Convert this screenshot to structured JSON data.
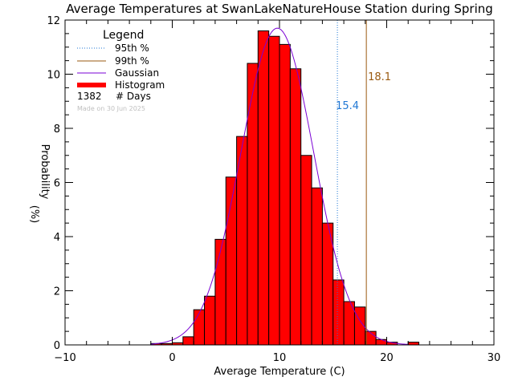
{
  "chart_data": {
    "type": "bar",
    "title": "Average Temperatures at SwanLakeNatureHouse Station during Spring",
    "xlabel": "Average Temperature (C)",
    "ylabel": "Probability",
    "ylabel_unit": "(%)",
    "xlim": [
      -10,
      30
    ],
    "ylim": [
      0,
      12
    ],
    "x_ticks": [
      -10,
      0,
      10,
      20,
      30
    ],
    "y_ticks": [
      0,
      2,
      4,
      6,
      8,
      10,
      12
    ],
    "bin_width": 1,
    "bins": [
      {
        "x": -2,
        "value": 0.05
      },
      {
        "x": -1,
        "value": 0.05
      },
      {
        "x": 0,
        "value": 0.08
      },
      {
        "x": 1,
        "value": 0.3
      },
      {
        "x": 2,
        "value": 1.3
      },
      {
        "x": 3,
        "value": 1.8
      },
      {
        "x": 4,
        "value": 3.9
      },
      {
        "x": 5,
        "value": 6.2
      },
      {
        "x": 6,
        "value": 7.7
      },
      {
        "x": 7,
        "value": 10.4
      },
      {
        "x": 8,
        "value": 11.6
      },
      {
        "x": 9,
        "value": 11.4
      },
      {
        "x": 10,
        "value": 11.1
      },
      {
        "x": 11,
        "value": 10.2
      },
      {
        "x": 12,
        "value": 7.0
      },
      {
        "x": 13,
        "value": 5.8
      },
      {
        "x": 14,
        "value": 4.5
      },
      {
        "x": 15,
        "value": 2.4
      },
      {
        "x": 16,
        "value": 1.6
      },
      {
        "x": 17,
        "value": 1.4
      },
      {
        "x": 18,
        "value": 0.5
      },
      {
        "x": 19,
        "value": 0.2
      },
      {
        "x": 20,
        "value": 0.1
      },
      {
        "x": 22,
        "value": 0.1
      }
    ],
    "gaussian": {
      "mean": 9.8,
      "sigma": 3.4,
      "peak": 11.7
    },
    "percentile_95": 15.4,
    "percentile_99": 18.1,
    "percentile_95_label": "15.4",
    "percentile_99_label": "18.1",
    "legend": {
      "title": "Legend",
      "position": "top-left",
      "entries": [
        {
          "label": "95th %",
          "style": "dotted",
          "color": "#1f77d4"
        },
        {
          "label": "99th %",
          "style": "solid",
          "color": "#9a5a10"
        },
        {
          "label": "Gaussian",
          "style": "solid",
          "color": "#7a00d4"
        },
        {
          "label": "Histogram",
          "style": "thick",
          "color": "#ff0000"
        }
      ],
      "count": "1382",
      "count_label": "# Days"
    },
    "credit": "Made on 30 Jun 2025",
    "colors": {
      "bar_fill": "#ff0000",
      "bar_edge": "#000000",
      "gaussian": "#7a00d4",
      "p95": "#1f77d4",
      "p99": "#9a5a10"
    }
  }
}
